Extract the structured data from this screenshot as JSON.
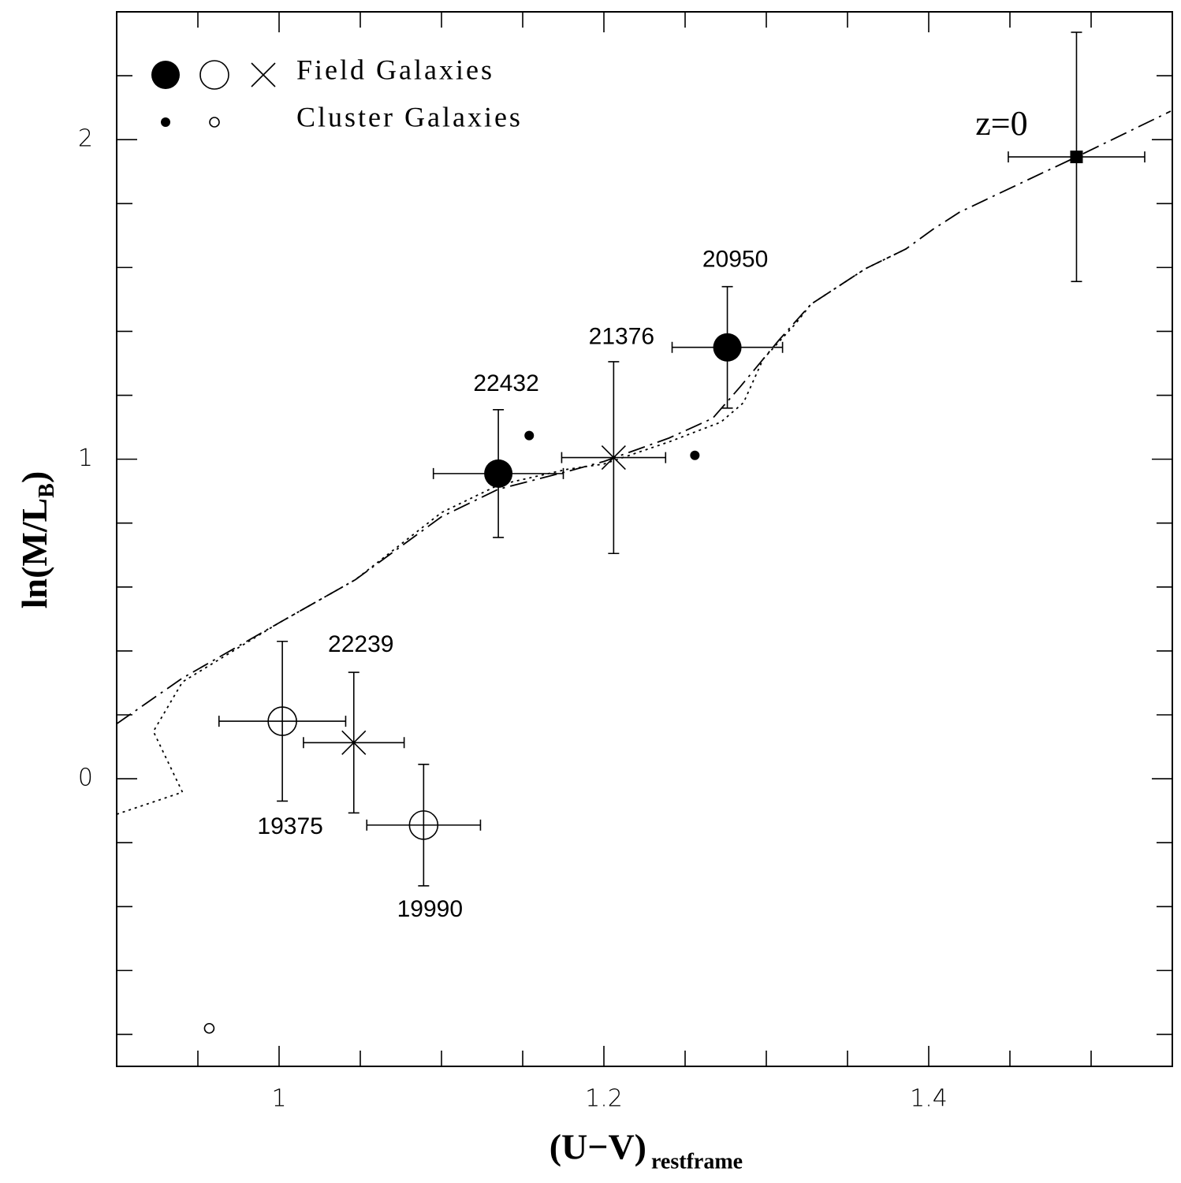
{
  "chart_data": {
    "type": "scatter",
    "xlabel": "(U−V)",
    "xlabel_sub": "restframe",
    "ylabel": "ln(M/L",
    "ylabel_sub": "B",
    "ylabel_end": ")",
    "xlim": [
      0.9,
      1.55
    ],
    "ylim": [
      -0.9,
      2.4
    ],
    "xticks": [
      1,
      1.2,
      1.4
    ],
    "xminor": [
      0.95,
      1.05,
      1.1,
      1.15,
      1.25,
      1.3,
      1.35,
      1.45,
      1.5
    ],
    "yticks": [
      0,
      1,
      2
    ],
    "yminor": [
      -0.8,
      -0.6,
      -0.4,
      -0.2,
      0.2,
      0.4,
      0.6,
      0.8,
      1.2,
      1.4,
      1.6,
      1.8,
      2.2
    ],
    "legend": "upper left",
    "groups": [
      {
        "name": "Field Galaxies",
        "markers": [
          "filled",
          "open",
          "cross"
        ]
      },
      {
        "name": "Cluster Galaxies",
        "markers": [
          "small-filled",
          "small-open"
        ]
      }
    ],
    "points": [
      {
        "label": "22432",
        "marker": "filled",
        "x": 1.135,
        "y": 0.955,
        "xerr": 0.04,
        "yerr": 0.2
      },
      {
        "label": "20950",
        "marker": "filled",
        "x": 1.276,
        "y": 1.35,
        "xerr": 0.034,
        "yerr": 0.19
      },
      {
        "label": "21376",
        "marker": "cross",
        "x": 1.206,
        "y": 1.005,
        "xerr": 0.032,
        "yerr": 0.3
      },
      {
        "label": "22239",
        "marker": "cross",
        "x": 1.046,
        "y": 0.113,
        "xerr": 0.031,
        "yerr": 0.22
      },
      {
        "label": "19375",
        "marker": "open",
        "x": 1.002,
        "y": 0.18,
        "xerr": 0.039,
        "yerr": 0.25
      },
      {
        "label": "19990",
        "marker": "open",
        "x": 1.089,
        "y": -0.145,
        "xerr": 0.035,
        "yerr": 0.19
      },
      {
        "label": "z=0",
        "marker": "square",
        "x": 1.491,
        "y": 1.946,
        "xerr": 0.042,
        "yerr": 0.39
      },
      {
        "marker": "small-filled",
        "x": 1.154,
        "y": 1.074
      },
      {
        "marker": "small-filled",
        "x": 1.256,
        "y": 1.012
      },
      {
        "marker": "small-open",
        "x": 0.957,
        "y": -0.781
      }
    ],
    "lines": [
      {
        "style": "dashdot",
        "x": [
          0.9,
          0.9405,
          1.0,
          1.047,
          1.1,
          1.135,
          1.177,
          1.2,
          1.24,
          1.267,
          1.284,
          1.308,
          1.3275,
          1.361,
          1.386,
          1.4025,
          1.419,
          1.458,
          1.491,
          1.549
        ],
        "y": [
          0.172,
          0.315,
          0.488,
          0.623,
          0.82,
          0.906,
          0.961,
          0.993,
          1.066,
          1.128,
          1.227,
          1.374,
          1.485,
          1.596,
          1.658,
          1.719,
          1.773,
          1.867,
          1.946,
          2.089
        ]
      },
      {
        "style": "dotted",
        "x": [
          0.9,
          0.9405,
          0.9226,
          0.9405,
          1.0,
          1.047,
          1.1,
          1.135,
          1.177,
          1.2,
          1.24,
          1.272,
          1.286,
          1.298,
          1.318,
          1.3275,
          1.361,
          1.386
        ],
        "y": [
          -0.111,
          -0.042,
          0.148,
          0.303,
          0.488,
          0.623,
          0.833,
          0.919,
          0.968,
          0.985,
          1.054,
          1.116,
          1.177,
          1.313,
          1.424,
          1.485,
          1.596,
          1.658
        ]
      }
    ]
  }
}
